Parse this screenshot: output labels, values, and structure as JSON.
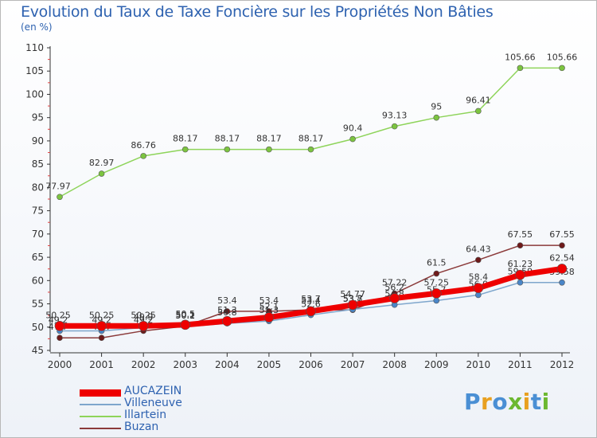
{
  "title": "Evolution du Taux de Taxe Foncière sur les Propriétés Non Bâties",
  "unit": "(en %)",
  "brand": {
    "text": "Proxiti",
    "letter_colors": [
      "#4a8fd4",
      "#e8a020",
      "#4a8fd4",
      "#6cb830",
      "#e8a020",
      "#4a8fd4",
      "#6cb830"
    ]
  },
  "chart_data": {
    "type": "line",
    "x": [
      "2000",
      "2001",
      "2002",
      "2003",
      "2004",
      "2005",
      "2006",
      "2007",
      "2008",
      "2009",
      "2010",
      "2011",
      "2012"
    ],
    "ylim": [
      45,
      110
    ],
    "yticks": [
      45,
      50,
      55,
      60,
      65,
      70,
      75,
      80,
      85,
      90,
      95,
      100,
      105,
      110
    ],
    "grid": false,
    "legend_position": "bottom-left",
    "series": [
      {
        "name": "Illartein",
        "color": "#8ed45a",
        "marker": "#7cc440",
        "width": 1.5,
        "values": [
          77.97,
          82.97,
          86.76,
          88.17,
          88.17,
          88.17,
          88.17,
          90.4,
          93.13,
          95,
          96.41,
          105.66,
          105.66
        ],
        "labels": [
          "77.97",
          "82.97",
          "86.76",
          "88.17",
          "88.17",
          "88.17",
          "88.17",
          "90.4",
          "93.13",
          "95",
          "96.41",
          "105.66",
          "105.66"
        ]
      },
      {
        "name": "Buzan",
        "color": "#8b3a3a",
        "marker": "#6e1a1a",
        "width": 1.5,
        "values": [
          47.7,
          47.7,
          49.2,
          50.2,
          53.4,
          53.4,
          53.7,
          53.7,
          57.22,
          61.5,
          64.43,
          67.55,
          67.55
        ],
        "labels": [
          "47.7",
          "47.7",
          "49.2",
          "50.2",
          "53.4",
          "53.4",
          "53.7",
          "53.7",
          "57.22",
          "61.5",
          "64.43",
          "67.55",
          "67.55"
        ]
      },
      {
        "name": "Villeneuve",
        "color": "#7ea6cc",
        "marker": "#4a86c8",
        "width": 1.5,
        "values": [
          49.2,
          49.2,
          49.9,
          50.1,
          50.8,
          51.3,
          52.6,
          53.8,
          54.8,
          55.7,
          56.9,
          59.59,
          59.58
        ],
        "labels": [
          "49.2",
          "49.2",
          "49.9",
          "50.1",
          "50.8",
          "51.3",
          "52.6",
          "53.8",
          "54.8",
          "55.7",
          "56.9",
          "59.59",
          "59.58"
        ]
      },
      {
        "name": "AUCAZEIN",
        "color": "#ee0000",
        "marker": "#ee0000",
        "width": 7,
        "values": [
          50.25,
          50.25,
          50.25,
          50.5,
          51.3,
          52.1,
          53.4,
          54.77,
          56.2,
          57.25,
          58.4,
          61.23,
          62.54
        ],
        "labels": [
          "50.25",
          "50.25",
          "50.25",
          "50.5",
          "51.3",
          "52.1",
          "53.4",
          "54.77",
          "56.2",
          "57.25",
          "58.4",
          "61.23",
          "62.54"
        ]
      }
    ]
  }
}
